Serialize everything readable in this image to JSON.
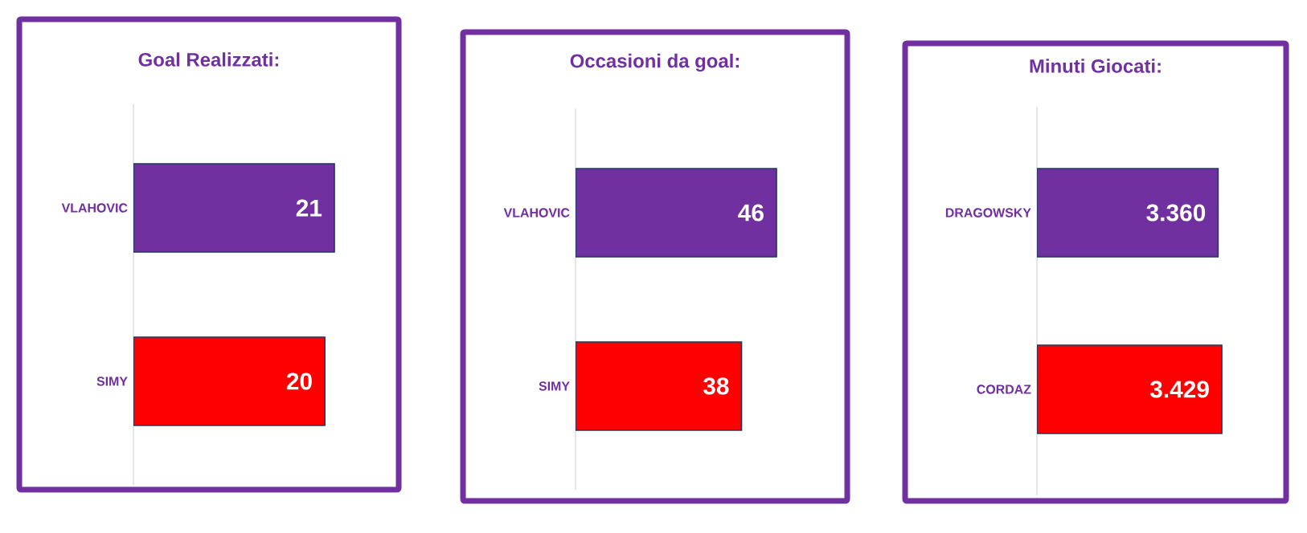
{
  "chart_data": [
    {
      "type": "bar",
      "orientation": "horizontal",
      "title": "Goal Realizzati:",
      "categories": [
        "VLAHOVIC",
        "SIMY"
      ],
      "values": [
        21,
        20
      ],
      "colors": [
        "#7030a0",
        "#ff0000"
      ],
      "data_labels": true,
      "tick_labels": "y"
    },
    {
      "type": "bar",
      "orientation": "horizontal",
      "title": "Occasioni da goal:",
      "categories": [
        "VLAHOVIC",
        "SIMY"
      ],
      "values": [
        46,
        38
      ],
      "colors": [
        "#7030a0",
        "#ff0000"
      ],
      "data_labels": true,
      "tick_labels": "y"
    },
    {
      "type": "bar",
      "orientation": "horizontal",
      "title": "Minuti Giocati:",
      "categories": [
        "DRAGOWSKY",
        "CORDAZ"
      ],
      "values": [
        3360,
        3429
      ],
      "colors": [
        "#7030a0",
        "#ff0000"
      ],
      "value_labels": [
        "3.360",
        "3.429"
      ],
      "tick_labels": "y"
    }
  ]
}
